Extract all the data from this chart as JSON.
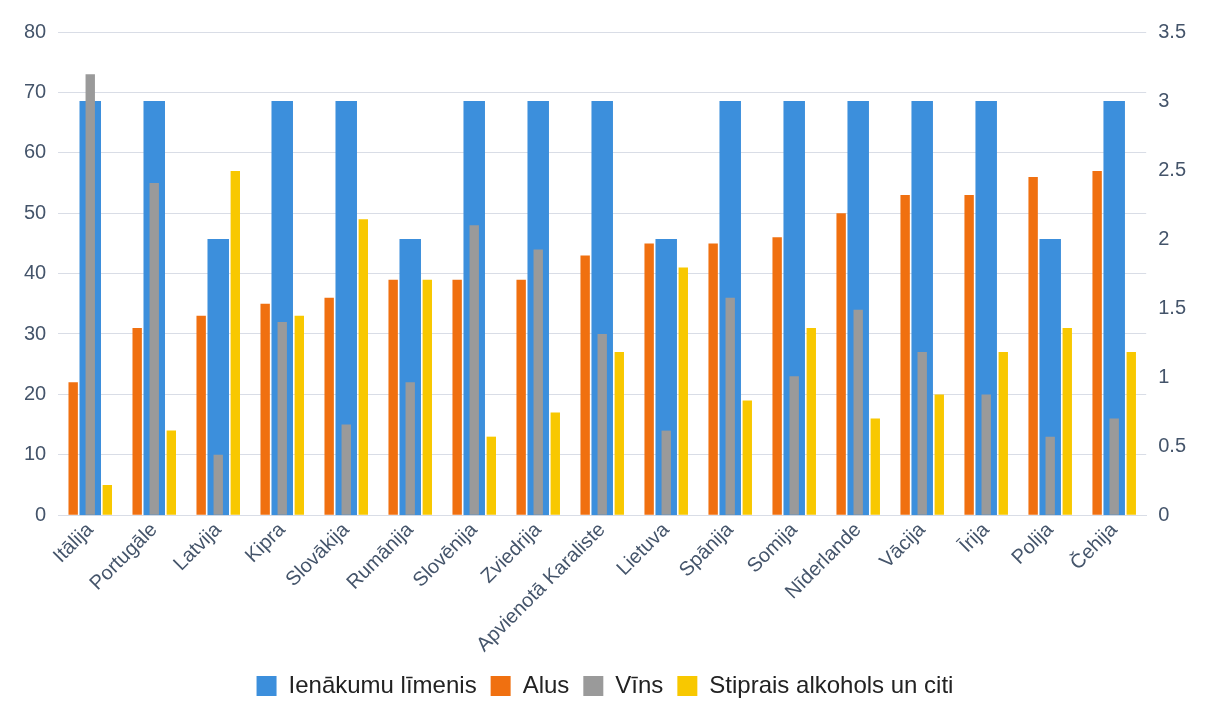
{
  "chart_data": {
    "type": "bar",
    "categories": [
      "Itālija",
      "Portugāle",
      "Latvija",
      "Kipra",
      "Slovākija",
      "Rumānija",
      "Slovēnija",
      "Zviedrija",
      "Apvienotā Karaliste",
      "Lietuva",
      "Spānija",
      "Somija",
      "Nīderlande",
      "Vācija",
      "Īrija",
      "Polija",
      "Čehija"
    ],
    "series": [
      {
        "name": "Ienākumu līmenis",
        "color": "#3c8fdc",
        "axis": "y2",
        "values": [
          3,
          3,
          2,
          3,
          3,
          2,
          3,
          3,
          3,
          2,
          3,
          3,
          3,
          3,
          3,
          2,
          3
        ]
      },
      {
        "name": "Alus",
        "color": "#f07010",
        "values": [
          22,
          31,
          33,
          35,
          36,
          39,
          39,
          39,
          43,
          45,
          45,
          46,
          50,
          53,
          53,
          56,
          57
        ]
      },
      {
        "name": "Vīns",
        "color": "#9a9a9a",
        "values": [
          73,
          55,
          10,
          32,
          15,
          22,
          48,
          44,
          30,
          14,
          36,
          23,
          34,
          27,
          20,
          13,
          16
        ]
      },
      {
        "name": "Stiprais alkohols un citi",
        "color": "#f8c800",
        "values": [
          5,
          14,
          57,
          33,
          49,
          39,
          13,
          17,
          27,
          41,
          19,
          31,
          16,
          20,
          27,
          31,
          27
        ]
      }
    ],
    "ylim": [
      0,
      80
    ],
    "yticks": [
      0,
      10,
      20,
      30,
      40,
      50,
      60,
      70,
      80
    ],
    "y2lim": [
      0,
      3.5
    ],
    "y2ticks": [
      0,
      0.5,
      1,
      1.5,
      2,
      2.5,
      3,
      3.5
    ],
    "grid": "y",
    "legend": "bottom"
  }
}
